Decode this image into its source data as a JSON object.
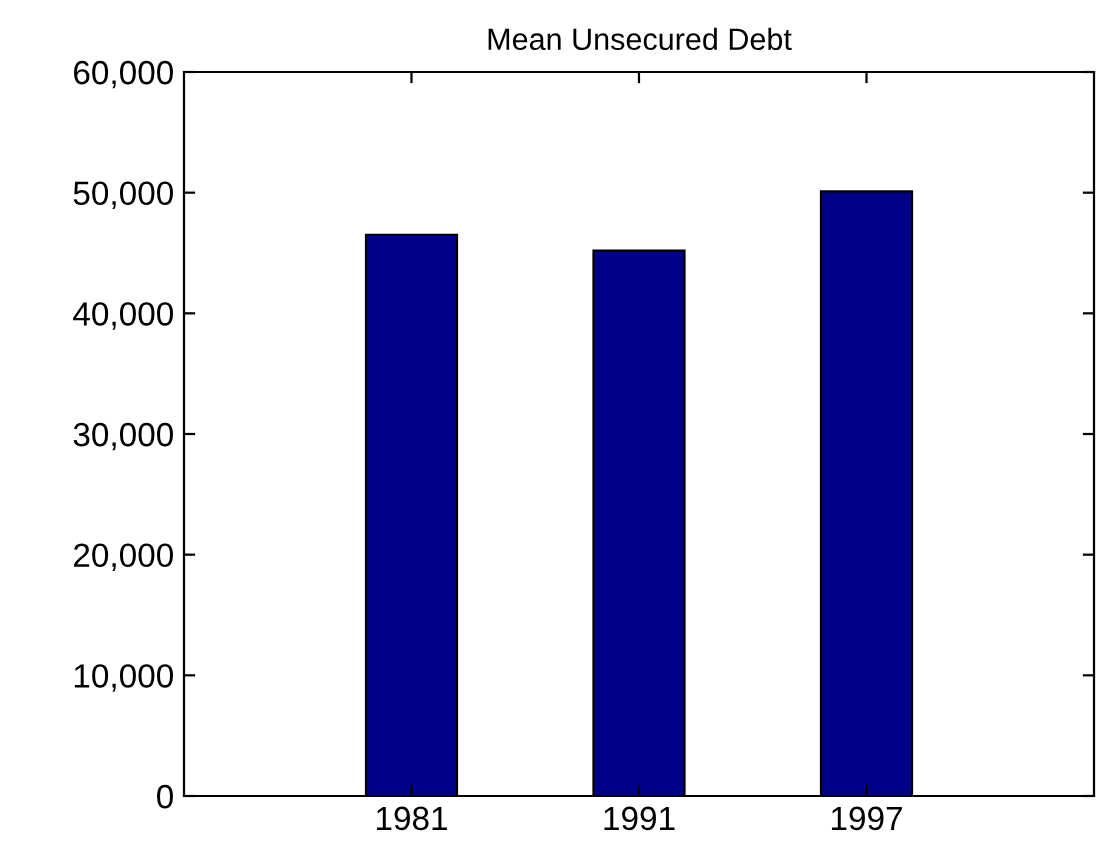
{
  "chart_data": {
    "type": "bar",
    "title": "Mean Unsecured Debt",
    "categories": [
      "1981",
      "1991",
      "1997"
    ],
    "values": [
      46500,
      45200,
      50100
    ],
    "color": "#00008b",
    "ylim": [
      0,
      60000
    ],
    "yticks": [
      {
        "value": 0,
        "label": "0"
      },
      {
        "value": 10000,
        "label": "10,000"
      },
      {
        "value": 20000,
        "label": "20,000"
      },
      {
        "value": 30000,
        "label": "30,000"
      },
      {
        "value": 40000,
        "label": "40,000"
      },
      {
        "value": 50000,
        "label": "50,000"
      },
      {
        "value": 60000,
        "label": "60,000"
      }
    ],
    "grid": false
  }
}
